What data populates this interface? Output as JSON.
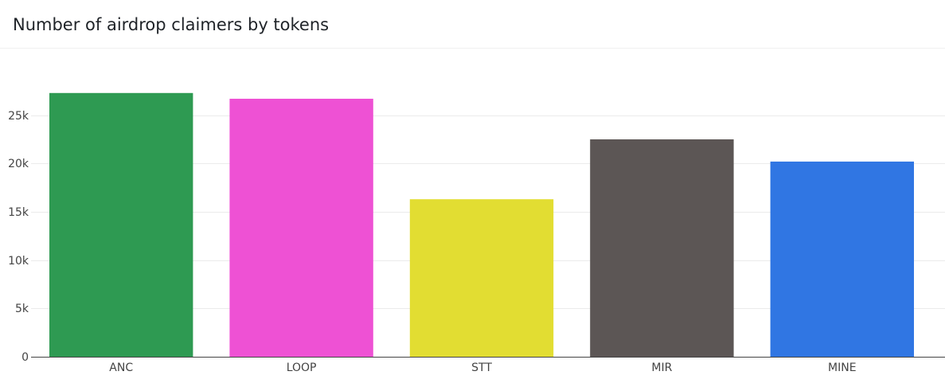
{
  "card": {
    "title": "Number of airdrop claimers by tokens"
  },
  "chart_data": {
    "type": "bar",
    "title": "Number of airdrop claimers by tokens",
    "xlabel": "",
    "ylabel": "",
    "categories": [
      "ANC",
      "LOOP",
      "STT",
      "MIR",
      "MINE"
    ],
    "values": [
      27300,
      26700,
      16300,
      22500,
      20200
    ],
    "colors": [
      "#2e9a52",
      "#ee51d4",
      "#e2dd32",
      "#5c5655",
      "#3076e3"
    ],
    "ylim": [
      0,
      30000
    ],
    "yticks": [
      0,
      5000,
      10000,
      15000,
      20000,
      25000
    ],
    "ytick_labels": [
      "0",
      "5k",
      "10k",
      "15k",
      "20k",
      "25k"
    ],
    "grid": true,
    "legend": "none"
  }
}
